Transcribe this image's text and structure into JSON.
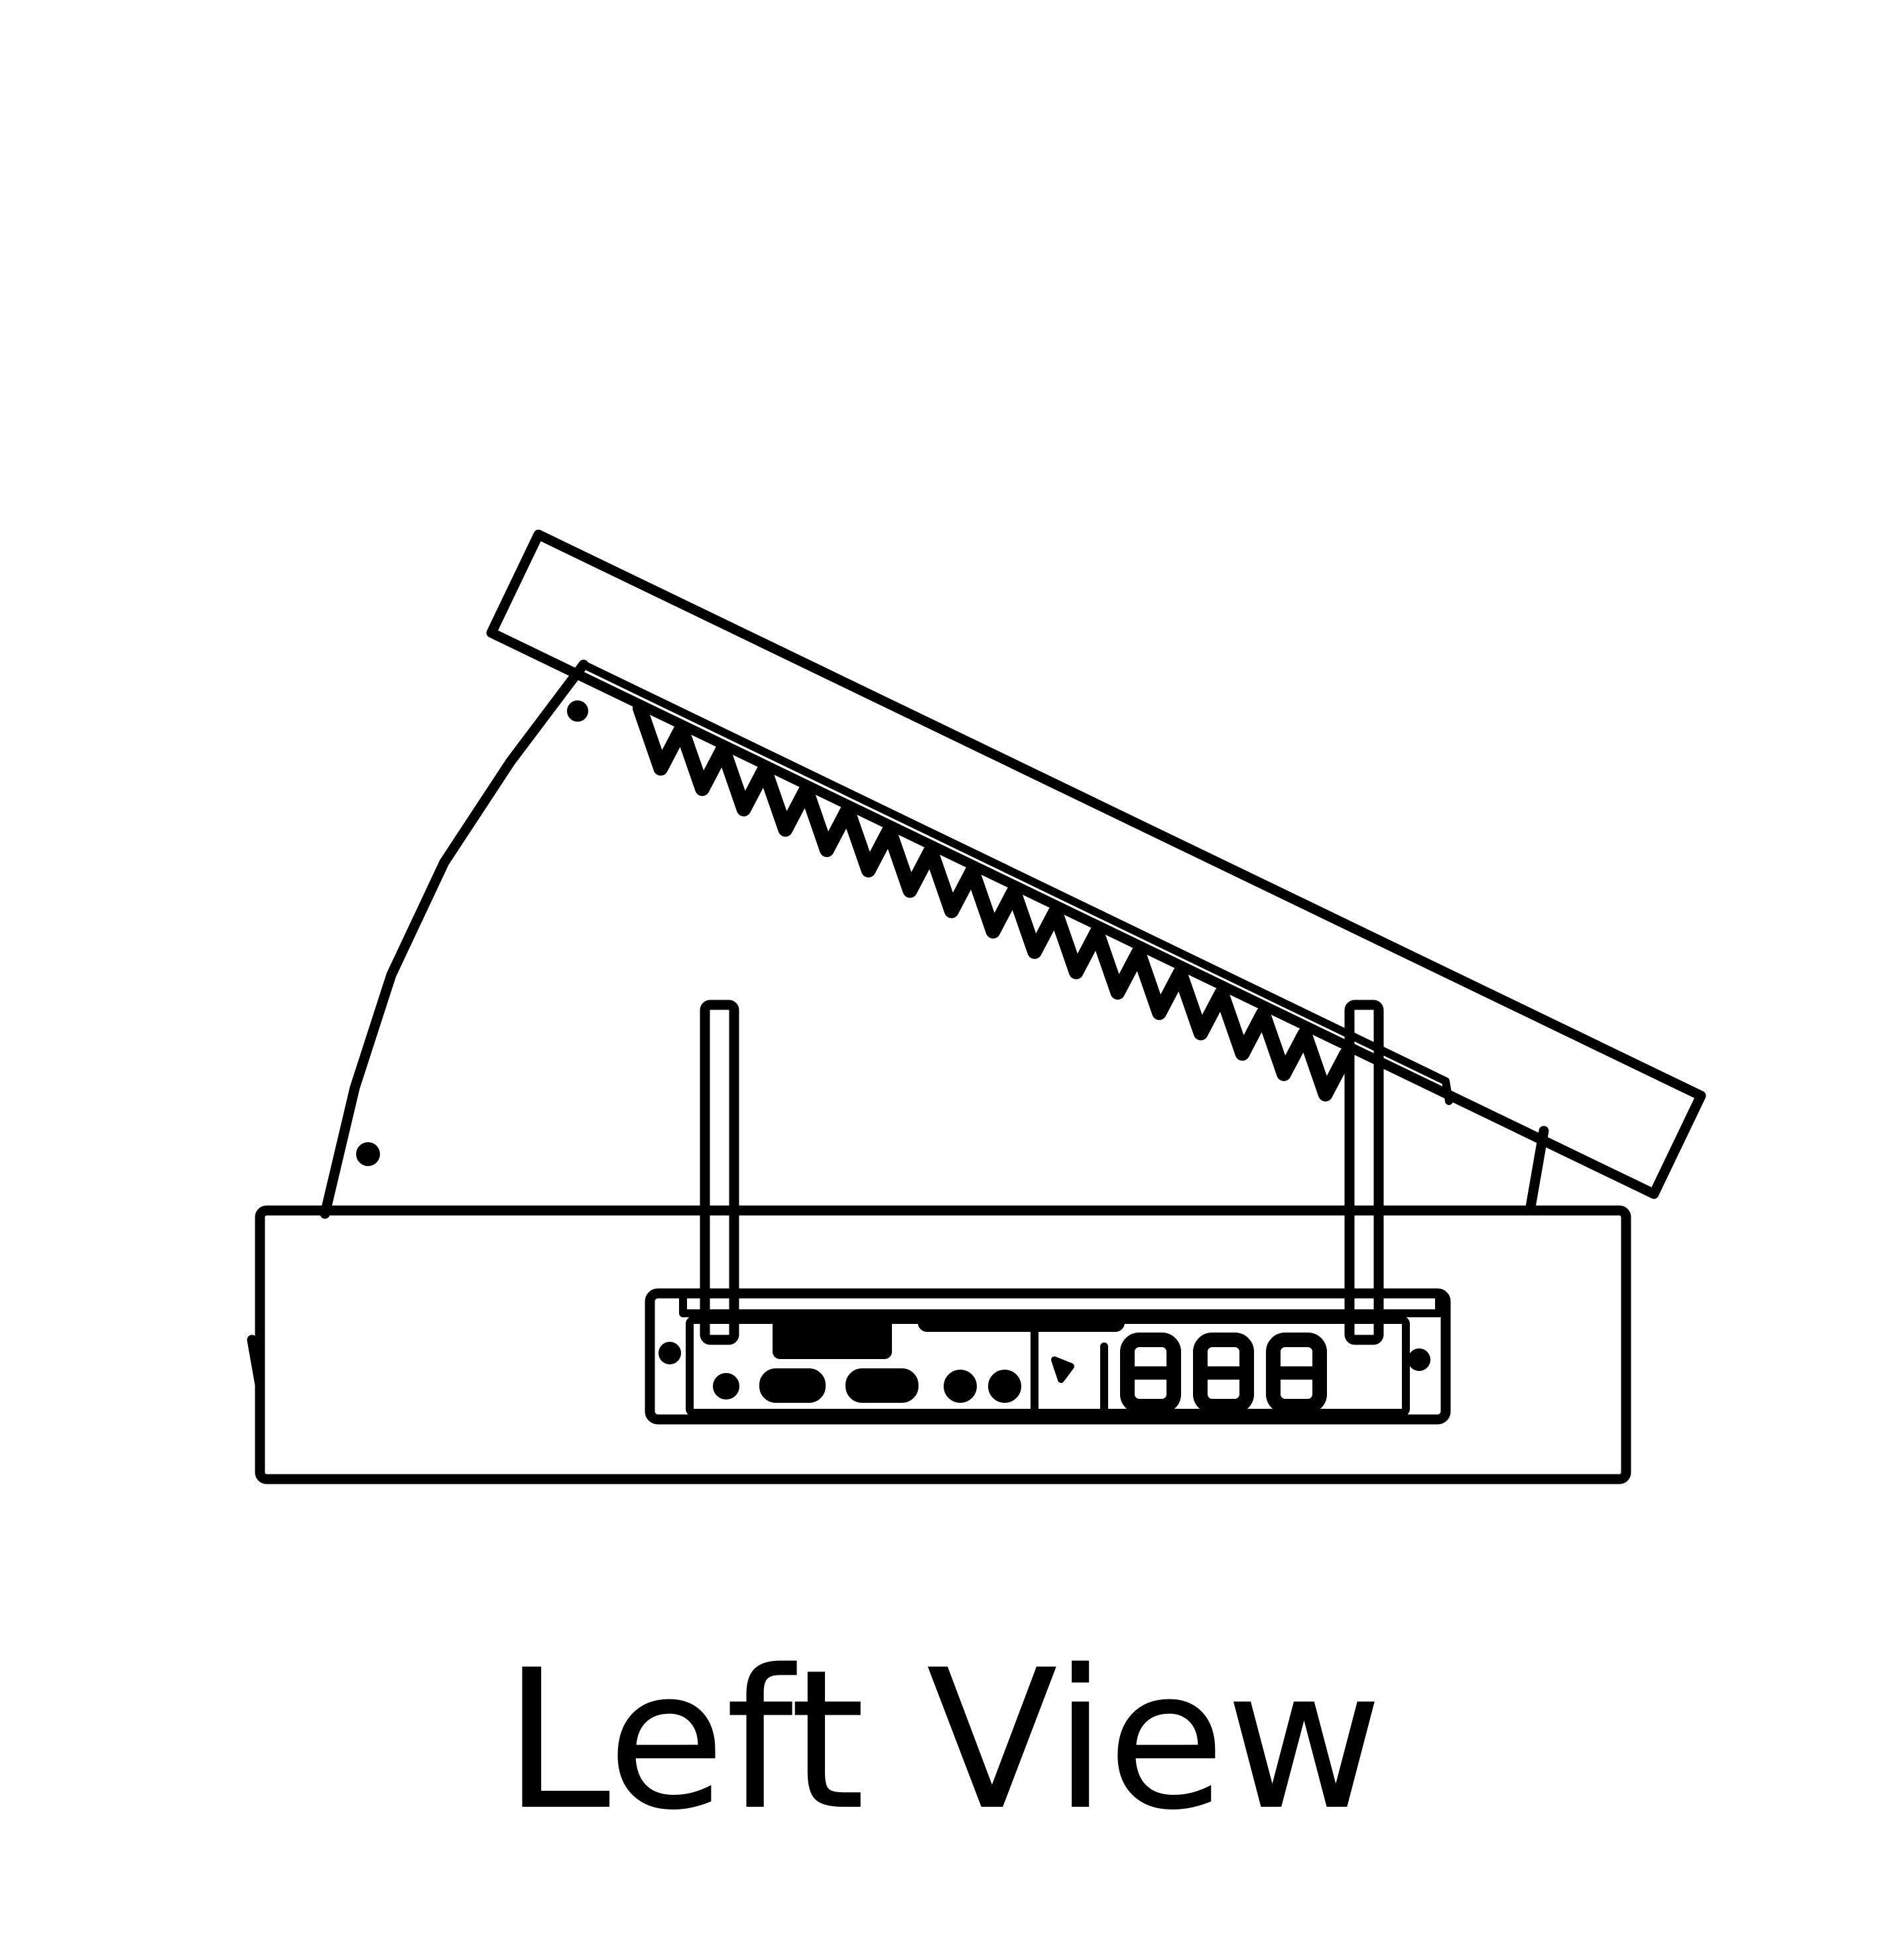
{
  "diagram": {
    "caption": "Left View",
    "display_digits": "888"
  },
  "colors": {
    "line": "#000000",
    "background": "#ffffff"
  }
}
